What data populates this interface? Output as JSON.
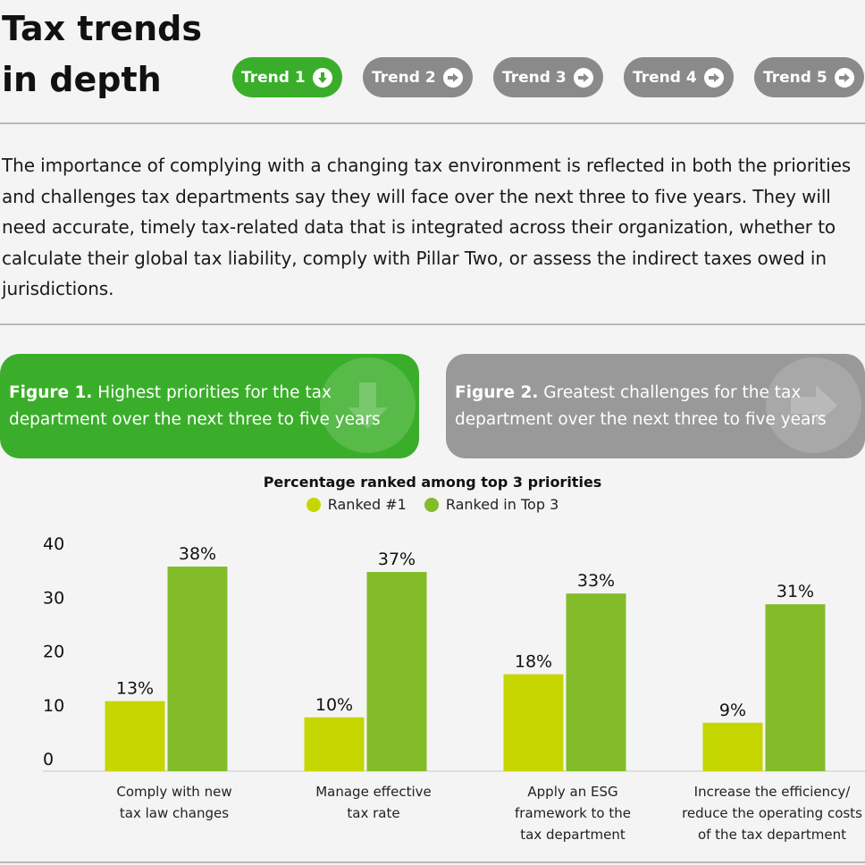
{
  "page": {
    "title_line1": "Tax trends",
    "title_line2": "in depth"
  },
  "colors": {
    "green": "#3aae2a",
    "gray": "#8a8a8a",
    "ranked1": "#c5d600",
    "top3": "#83bc29"
  },
  "tabs": [
    {
      "label": "Trend 1",
      "active": true,
      "icon": "arrow-down-circle-icon"
    },
    {
      "label": "Trend 2",
      "active": false,
      "icon": "arrow-right-circle-icon"
    },
    {
      "label": "Trend 3",
      "active": false,
      "icon": "arrow-right-circle-icon"
    },
    {
      "label": "Trend 4",
      "active": false,
      "icon": "arrow-right-circle-icon"
    },
    {
      "label": "Trend 5",
      "active": false,
      "icon": "arrow-right-circle-icon"
    }
  ],
  "intro": "The importance of complying with a changing tax environment is reflected in both the priorities and challenges tax departments say they will face over the next three to five years. They will need accurate, timely tax-related data that is integrated across their organization, whether to calculate their global tax liability, comply with Pillar Two, or assess the indirect taxes owed in jurisdictions.",
  "figures": [
    {
      "label": "Figure 1.",
      "text": "Highest priorities for the tax department over the next three to five years",
      "active": true,
      "icon": "arrow-down-icon"
    },
    {
      "label": "Figure 2.",
      "text": "Greatest challenges for the tax department over the next three to five years",
      "active": false,
      "icon": "arrow-right-icon"
    }
  ],
  "chart_data": {
    "type": "bar",
    "title": "Percentage ranked among top 3 priorities",
    "categories": [
      [
        "Comply with new",
        "tax law changes"
      ],
      [
        "Manage effective",
        "tax rate"
      ],
      [
        "Apply an ESG",
        "framework to the",
        "tax department"
      ],
      [
        "Increase the efficiency/",
        "reduce the operating costs",
        "of the tax department"
      ]
    ],
    "series": [
      {
        "name": "Ranked #1",
        "values": [
          13,
          10,
          18,
          9
        ],
        "labels": [
          "13%",
          "10%",
          "18%",
          "9%"
        ],
        "color": "#c5d600"
      },
      {
        "name": "Ranked in Top 3",
        "values": [
          38,
          37,
          33,
          31
        ],
        "labels": [
          "38%",
          "37%",
          "33%",
          "31%"
        ],
        "color": "#83bc29"
      }
    ],
    "yticks": [
      "0",
      "10",
      "20",
      "30",
      "40"
    ],
    "ylim": [
      0,
      40
    ],
    "legend": "top-center",
    "grid": false
  }
}
